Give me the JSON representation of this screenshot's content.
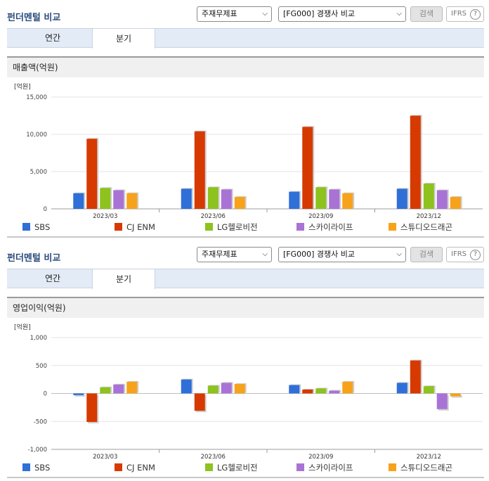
{
  "panels": [
    {
      "title": "펀더멘털 비교",
      "select_type": "주재무제표",
      "select_compare": "[FG000] 경쟁사 비교",
      "search_label": "검색",
      "ifrs_label": "IFRS",
      "help_glyph": "?",
      "tabs": [
        "연간",
        "분기"
      ],
      "active_tab": "분기",
      "section_title": "매출액(억원)"
    },
    {
      "title": "펀더멘털 비교",
      "select_type": "주재무제표",
      "select_compare": "[FG000] 경쟁사 비교",
      "search_label": "검색",
      "ifrs_label": "IFRS",
      "help_glyph": "?",
      "tabs": [
        "연간",
        "분기"
      ],
      "active_tab": "분기",
      "section_title": "영업이익(억원)"
    }
  ],
  "chart_data": [
    {
      "type": "bar",
      "unit_label": "[억원]",
      "categories": [
        "2023/03",
        "2023/06",
        "2023/09",
        "2023/12"
      ],
      "ylim": [
        0,
        15000
      ],
      "yticks": [
        0,
        5000,
        10000,
        15000
      ],
      "ytick_labels": [
        "0",
        "5,000",
        "10,000",
        "15,000"
      ],
      "grid": true,
      "legend_placement": "bottom",
      "series": [
        {
          "name": "SBS",
          "color": "#2f6fd8",
          "values": [
            2100,
            2700,
            2300,
            2700
          ]
        },
        {
          "name": "CJ ENM",
          "color": "#d63a00",
          "values": [
            9400,
            10400,
            11000,
            12500
          ]
        },
        {
          "name": "LG헬로비전",
          "color": "#8dc21f",
          "values": [
            2800,
            2900,
            2900,
            3400
          ]
        },
        {
          "name": "스카이라이프",
          "color": "#a973d6",
          "values": [
            2500,
            2600,
            2600,
            2500
          ]
        },
        {
          "name": "스튜디오드래곤",
          "color": "#f7a21b",
          "values": [
            2100,
            1600,
            2100,
            1600
          ]
        }
      ]
    },
    {
      "type": "bar",
      "unit_label": "[억원]",
      "categories": [
        "2023/03",
        "2023/06",
        "2023/09",
        "2023/12"
      ],
      "ylim": [
        -1000,
        1000
      ],
      "yticks": [
        -1000,
        -500,
        0,
        500,
        1000
      ],
      "ytick_labels": [
        "-1,000",
        "-500",
        "0",
        "500",
        "1,000"
      ],
      "grid": true,
      "legend_placement": "bottom",
      "series": [
        {
          "name": "SBS",
          "color": "#2f6fd8",
          "values": [
            -30,
            250,
            150,
            190
          ]
        },
        {
          "name": "CJ ENM",
          "color": "#d63a00",
          "values": [
            -510,
            -310,
            70,
            590
          ]
        },
        {
          "name": "LG헬로비전",
          "color": "#8dc21f",
          "values": [
            110,
            140,
            90,
            130
          ]
        },
        {
          "name": "스카이라이프",
          "color": "#a973d6",
          "values": [
            160,
            190,
            50,
            -280
          ]
        },
        {
          "name": "스튜디오드래곤",
          "color": "#f7a21b",
          "values": [
            210,
            170,
            210,
            -50
          ]
        }
      ]
    }
  ]
}
